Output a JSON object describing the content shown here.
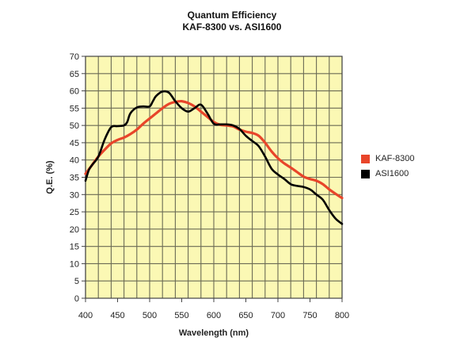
{
  "chart_data": {
    "type": "line",
    "title": "Quantum Efficiency",
    "subtitle": "KAF-8300 vs. ASI1600",
    "xlabel": "Wavelength (nm)",
    "ylabel": "Q.E. (%)",
    "xlim": [
      400,
      800
    ],
    "ylim": [
      0,
      70
    ],
    "x_ticks": [
      "400",
      "450",
      "500",
      "550",
      "600",
      "650",
      "700",
      "750",
      "800"
    ],
    "y_ticks": [
      "0",
      "5",
      "10",
      "15",
      "20",
      "25",
      "30",
      "35",
      "40",
      "45",
      "50",
      "55",
      "60",
      "65",
      "70"
    ],
    "x_grid_step": 20,
    "y_grid_step": 5,
    "grid": true,
    "plot_background": "#fbf8b4",
    "legend_placement": "right",
    "series": [
      {
        "name": "KAF-8300",
        "color": "#e8452a",
        "points": [
          [
            400,
            36
          ],
          [
            410,
            38.5
          ],
          [
            420,
            41
          ],
          [
            430,
            43
          ],
          [
            440,
            44.8
          ],
          [
            450,
            45.8
          ],
          [
            460,
            46.5
          ],
          [
            470,
            47.5
          ],
          [
            480,
            48.8
          ],
          [
            490,
            50.5
          ],
          [
            500,
            52
          ],
          [
            510,
            53.5
          ],
          [
            520,
            55
          ],
          [
            530,
            56.2
          ],
          [
            540,
            56.8
          ],
          [
            550,
            57
          ],
          [
            560,
            56.5
          ],
          [
            570,
            55.5
          ],
          [
            580,
            54
          ],
          [
            590,
            52.5
          ],
          [
            600,
            51
          ],
          [
            610,
            50.2
          ],
          [
            620,
            50
          ],
          [
            630,
            49.7
          ],
          [
            640,
            48.8
          ],
          [
            650,
            48.2
          ],
          [
            660,
            47.8
          ],
          [
            670,
            47
          ],
          [
            680,
            45
          ],
          [
            690,
            42.5
          ],
          [
            700,
            40.5
          ],
          [
            710,
            39
          ],
          [
            720,
            37.8
          ],
          [
            730,
            36.5
          ],
          [
            740,
            35.2
          ],
          [
            750,
            34.5
          ],
          [
            760,
            34
          ],
          [
            770,
            33
          ],
          [
            780,
            31.5
          ],
          [
            790,
            30.2
          ],
          [
            800,
            29
          ]
        ]
      },
      {
        "name": "ASI1600",
        "color": "#000000",
        "points": [
          [
            400,
            34
          ],
          [
            405,
            37
          ],
          [
            410,
            38.5
          ],
          [
            420,
            41
          ],
          [
            430,
            46
          ],
          [
            440,
            49.5
          ],
          [
            450,
            49.8
          ],
          [
            460,
            50
          ],
          [
            465,
            51
          ],
          [
            470,
            53.5
          ],
          [
            480,
            55.2
          ],
          [
            490,
            55.5
          ],
          [
            500,
            55.5
          ],
          [
            505,
            57
          ],
          [
            510,
            58.5
          ],
          [
            520,
            59.8
          ],
          [
            530,
            59.5
          ],
          [
            540,
            57
          ],
          [
            550,
            55
          ],
          [
            560,
            54
          ],
          [
            570,
            55
          ],
          [
            580,
            56
          ],
          [
            590,
            53.5
          ],
          [
            600,
            50.5
          ],
          [
            610,
            50.3
          ],
          [
            620,
            50.3
          ],
          [
            630,
            50
          ],
          [
            640,
            49
          ],
          [
            650,
            47
          ],
          [
            660,
            45.5
          ],
          [
            670,
            44
          ],
          [
            680,
            41
          ],
          [
            690,
            37.5
          ],
          [
            700,
            35.8
          ],
          [
            710,
            34.5
          ],
          [
            720,
            33
          ],
          [
            730,
            32.5
          ],
          [
            740,
            32.2
          ],
          [
            750,
            31.5
          ],
          [
            760,
            30
          ],
          [
            770,
            28.5
          ],
          [
            780,
            25.5
          ],
          [
            790,
            23
          ],
          [
            800,
            21.5
          ]
        ]
      }
    ]
  }
}
